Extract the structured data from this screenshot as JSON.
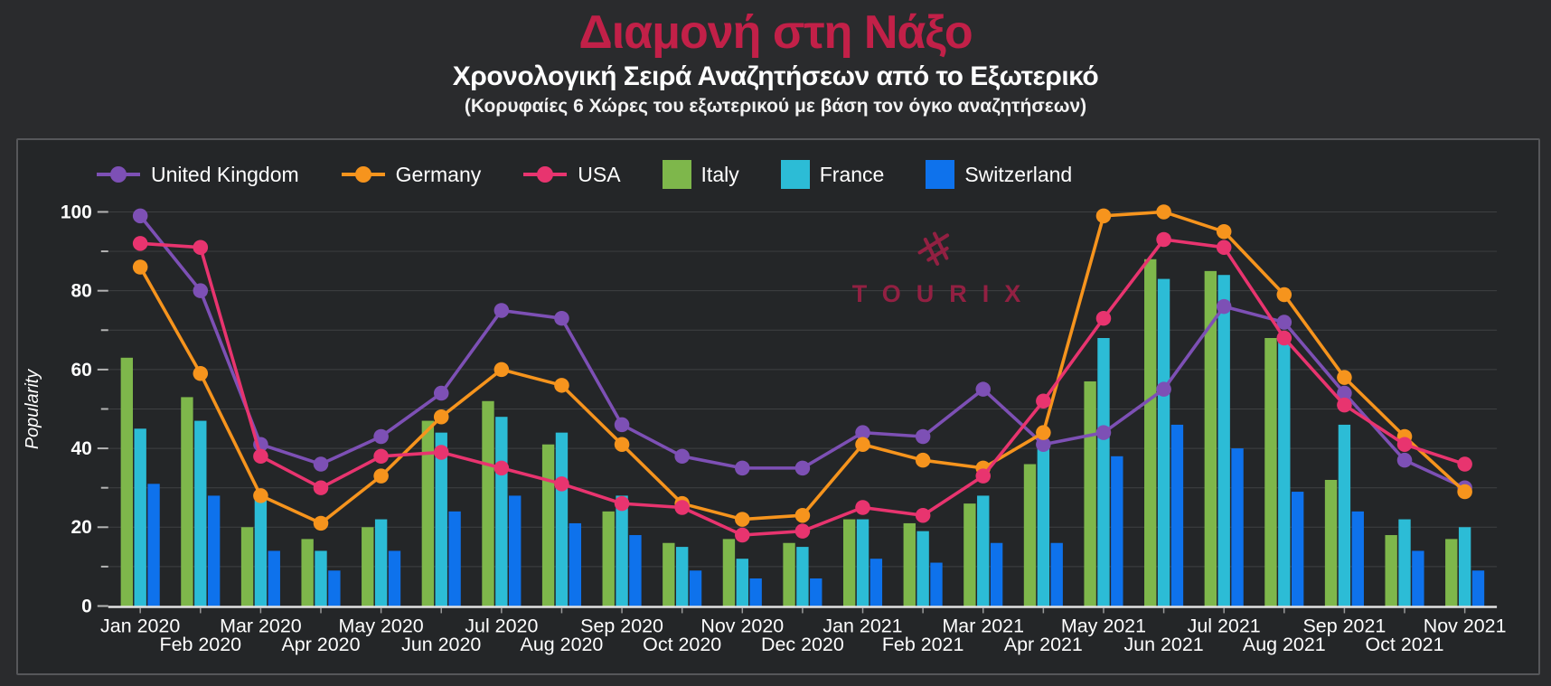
{
  "header": {
    "title": "Διαμονή στη Νάξο",
    "title_color": "#c22048",
    "subtitle": "Χρονολογική Σειρά Αναζητήσεων από το Εξωτερικό",
    "note": "(Κορυφαίες 6 Χώρες του εξωτερικού με βάση τον όγκο αναζητήσεων)"
  },
  "watermark": {
    "text": "TOURIX",
    "color": "#9c2045"
  },
  "chart_data": {
    "type": "line+bar combo",
    "title": "Διαμονή στη Νάξο",
    "subtitle": "Χρονολογική Σειρά Αναζητήσεων από το Εξωτερικό",
    "x": [
      "Jan 2020",
      "Feb 2020",
      "Mar 2020",
      "Apr 2020",
      "May 2020",
      "Jun 2020",
      "Jul 2020",
      "Aug 2020",
      "Sep 2020",
      "Oct 2020",
      "Nov 2020",
      "Dec 2020",
      "Jan 2021",
      "Feb 2021",
      "Mar 2021",
      "Apr 2021",
      "May 2021",
      "Jun 2021",
      "Jul 2021",
      "Aug 2021",
      "Sep 2021",
      "Oct 2021",
      "Nov 2021"
    ],
    "ylabel": "Popularity",
    "ylim": [
      0,
      100
    ],
    "ytick_major_step": 20,
    "ytick_minor_step": 10,
    "grid": true,
    "legend_position": "top-left",
    "line_series": [
      {
        "name": "United Kingdom",
        "color": "#7d50b5",
        "values": [
          99,
          80,
          41,
          36,
          43,
          54,
          75,
          73,
          46,
          38,
          35,
          35,
          44,
          43,
          55,
          41,
          44,
          55,
          76,
          72,
          54,
          37,
          30
        ]
      },
      {
        "name": "Germany",
        "color": "#f6941d",
        "values": [
          86,
          59,
          28,
          21,
          33,
          48,
          60,
          56,
          41,
          26,
          22,
          23,
          41,
          37,
          35,
          44,
          99,
          100,
          95,
          79,
          58,
          43,
          29
        ]
      },
      {
        "name": "USA",
        "color": "#e8346f",
        "values": [
          92,
          91,
          38,
          30,
          38,
          39,
          35,
          31,
          26,
          25,
          18,
          19,
          25,
          23,
          33,
          52,
          73,
          93,
          91,
          68,
          51,
          41,
          36
        ]
      }
    ],
    "bar_series": [
      {
        "name": "Italy",
        "color": "#7eb74b",
        "values": [
          63,
          53,
          20,
          17,
          20,
          47,
          52,
          41,
          24,
          16,
          17,
          16,
          22,
          21,
          26,
          36,
          57,
          88,
          85,
          68,
          32,
          18,
          17
        ]
      },
      {
        "name": "France",
        "color": "#2cbcd6",
        "values": [
          45,
          47,
          27,
          14,
          22,
          44,
          48,
          44,
          28,
          15,
          12,
          15,
          22,
          19,
          28,
          40,
          68,
          83,
          84,
          67,
          46,
          22,
          20
        ]
      },
      {
        "name": "Switzerland",
        "color": "#0e72ec",
        "values": [
          31,
          28,
          14,
          9,
          14,
          24,
          28,
          21,
          18,
          9,
          7,
          7,
          12,
          11,
          16,
          16,
          38,
          46,
          40,
          29,
          24,
          14,
          9
        ]
      }
    ]
  }
}
